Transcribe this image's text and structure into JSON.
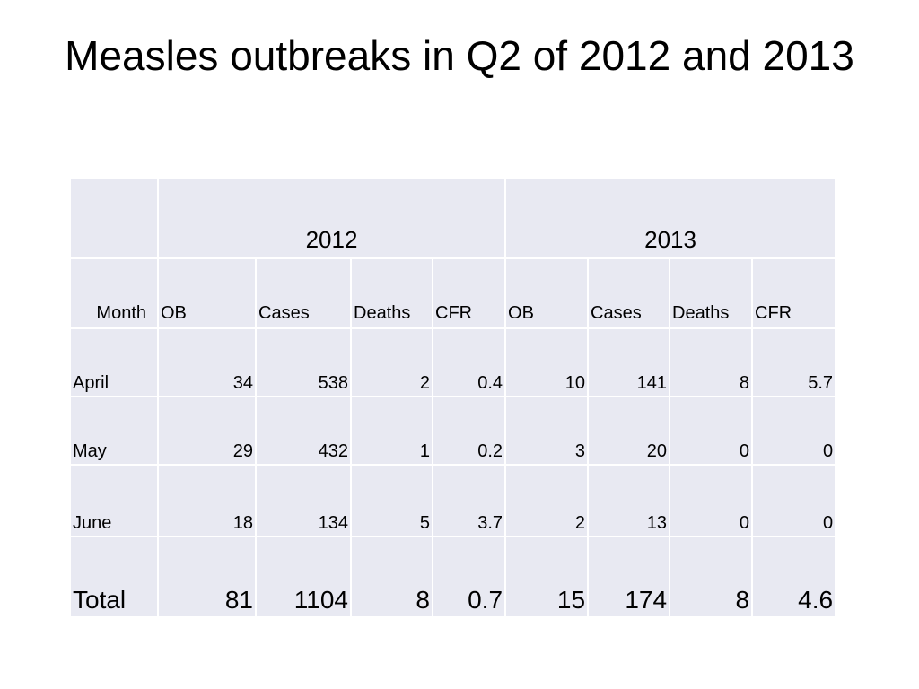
{
  "slide": {
    "title": "Measles outbreaks in Q2 of 2012 and 2013"
  },
  "table": {
    "years": [
      "2012",
      "2013"
    ],
    "month_header": "Month",
    "sub_headers": [
      "OB",
      "Cases",
      "Deaths",
      "CFR",
      "OB",
      "Cases",
      "Deaths",
      "CFR"
    ],
    "rows": [
      {
        "month": "April",
        "values": [
          "34",
          "538",
          "2",
          "0.4",
          "10",
          "141",
          "8",
          "5.7"
        ]
      },
      {
        "month": "May",
        "values": [
          "29",
          "432",
          "1",
          "0.2",
          "3",
          "20",
          "0",
          "0"
        ]
      },
      {
        "month": "June",
        "values": [
          "18",
          "134",
          "5",
          "3.7",
          "2",
          "13",
          "0",
          "0"
        ]
      }
    ],
    "total": {
      "label": "Total",
      "values": [
        "81",
        "1104",
        "8",
        "0.7",
        "15",
        "174",
        "8",
        "4.6"
      ]
    }
  },
  "colors": {
    "cell_background": "#e8e9f2",
    "cell_border": "#ffffff",
    "text": "#000000"
  }
}
